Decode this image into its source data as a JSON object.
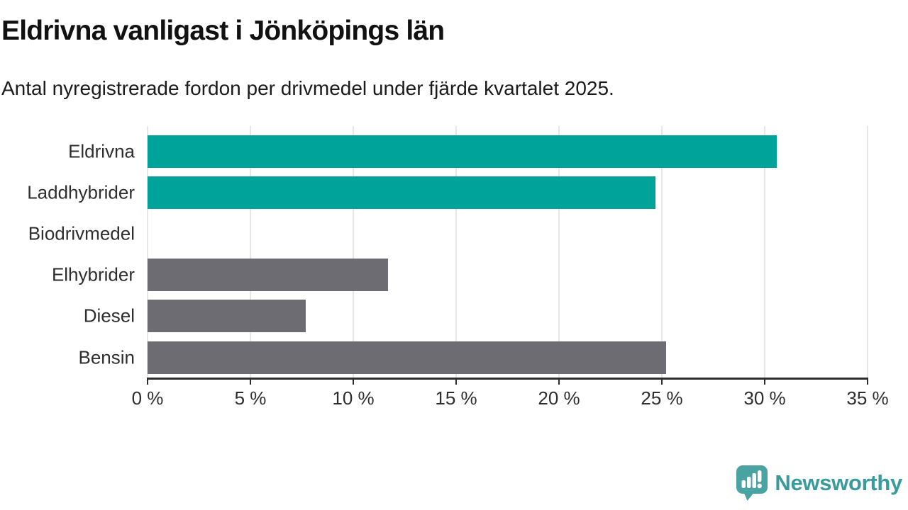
{
  "header": {
    "title": "Eldrivna vanligast i Jönköpings län",
    "subtitle": "Antal nyregistrerade fordon per drivmedel under fjärde kvartalet 2025."
  },
  "chart_data": {
    "type": "bar",
    "orientation": "horizontal",
    "title": "Eldrivna vanligast i Jönköpings län",
    "subtitle": "Antal nyregistrerade fordon per drivmedel under fjärde kvartalet 2025.",
    "categories": [
      "Eldrivna",
      "Laddhybrider",
      "Biodrivmedel",
      "Elhybrider",
      "Diesel",
      "Bensin"
    ],
    "values": [
      30.6,
      24.7,
      0,
      11.7,
      7.7,
      25.2
    ],
    "unit": "%",
    "bar_colors": [
      "#00a399",
      "#00a399",
      "#6c6c72",
      "#6c6c72",
      "#6c6c72",
      "#6c6c72"
    ],
    "xlim": [
      0,
      35
    ],
    "x_ticks": [
      0,
      5,
      10,
      15,
      20,
      25,
      30,
      35
    ],
    "x_tick_labels": [
      "0 %",
      "5 %",
      "10 %",
      "15 %",
      "20 %",
      "25 %",
      "30 %",
      "35 %"
    ],
    "grid": "vertical",
    "legend": "none"
  },
  "colors": {
    "teal_bar": "#00a399",
    "gray_bar": "#6c6c72",
    "gridline": "#e7e7e7",
    "axis": "#2d2d2d",
    "tick_text": "#2e2e2e",
    "title_text": "#111111",
    "logo_icon": "#48a3a2",
    "logo_text": "#3a9b9d"
  },
  "footer": {
    "brand": "Newsworthy",
    "logo_icon": "bar-chart-speech-bubble-icon"
  }
}
